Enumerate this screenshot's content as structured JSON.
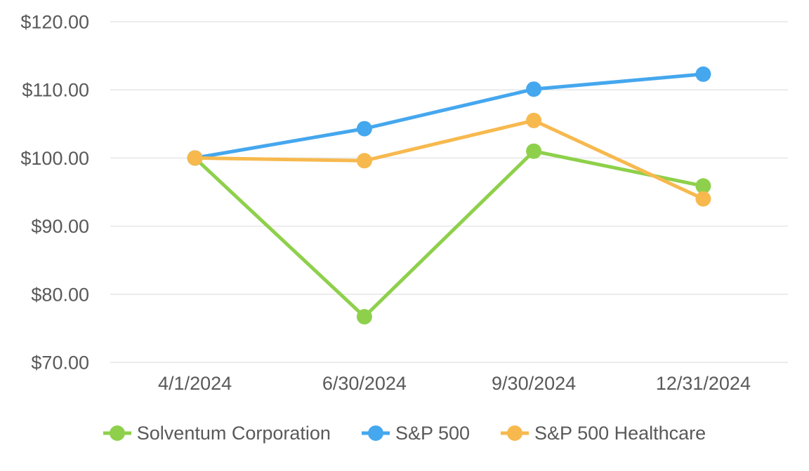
{
  "chart_data": {
    "type": "line",
    "title": "",
    "categories": [
      "4/1/2024",
      "6/30/2024",
      "9/30/2024",
      "12/31/2024"
    ],
    "series": [
      {
        "name": "Solventum Corporation",
        "color": "#8ED04B",
        "values": [
          100.0,
          76.7,
          101.0,
          95.9
        ]
      },
      {
        "name": "S&P 500",
        "color": "#45A7EE",
        "values": [
          100.0,
          104.3,
          110.1,
          112.3
        ]
      },
      {
        "name": "S&P 500 Healthcare",
        "color": "#F7B94E",
        "values": [
          100.0,
          99.6,
          105.5,
          94.0
        ]
      }
    ],
    "y_axis": {
      "min": 70,
      "max": 120,
      "step": 10,
      "tick_labels": [
        "$120.00",
        "$110.00",
        "$100.00",
        "$90.00",
        "$80.00",
        "$70.00"
      ]
    },
    "x_axis": {
      "tick_labels": [
        "4/1/2024",
        "6/30/2024",
        "9/30/2024",
        "12/31/2024"
      ]
    },
    "grid": true,
    "legend_position": "bottom",
    "marker": "circle",
    "ylim": [
      70,
      120
    ]
  },
  "colors": {
    "background": "#FFFFFF",
    "gridline": "#E6E6E6",
    "axis_text": "#595959",
    "series_green": "#8ED04B",
    "series_blue": "#45A7EE",
    "series_orange": "#F7B94E"
  }
}
